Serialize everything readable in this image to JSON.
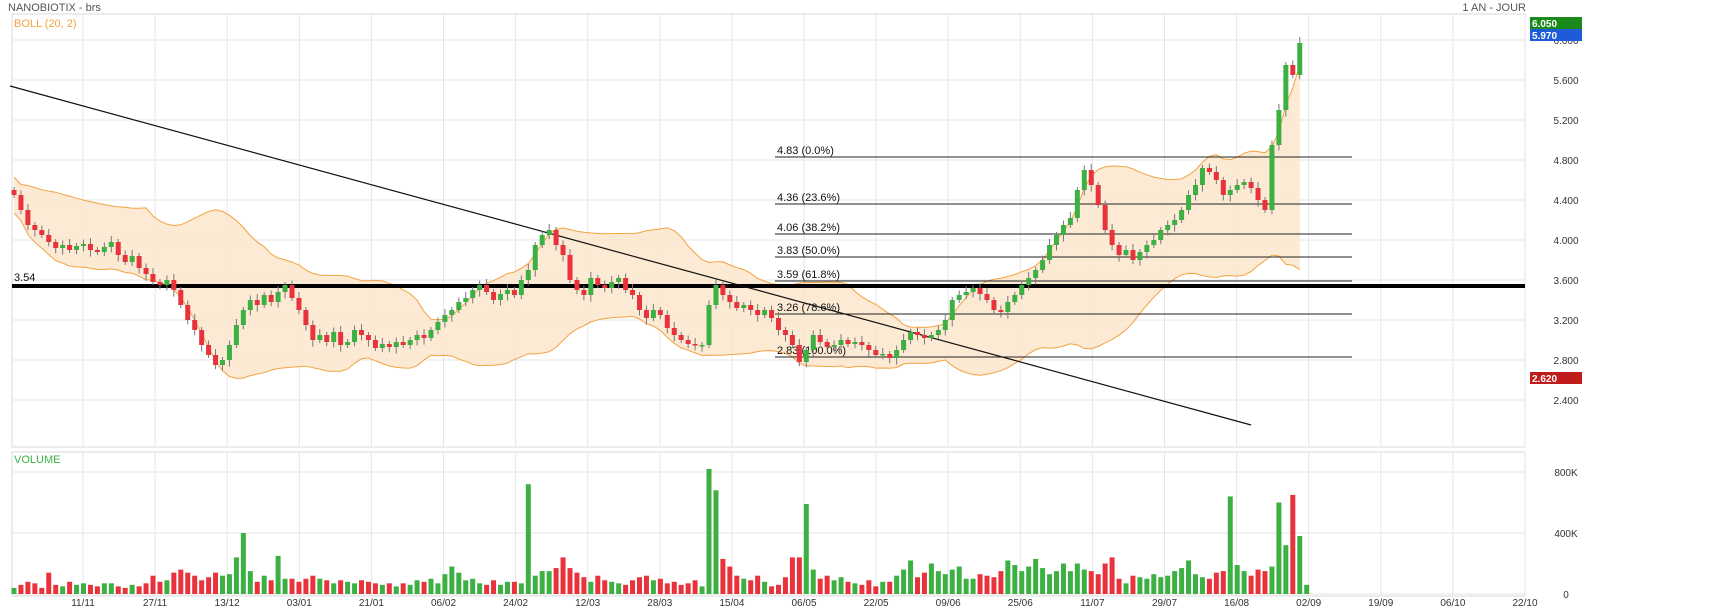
{
  "header": {
    "title": "NANOBIOTIX - brs",
    "period": "1 AN - JOUR"
  },
  "colors": {
    "up": "#3cb043",
    "down": "#e8333c",
    "band_line": "#f2a340",
    "band_fill": "#fce6cc",
    "grid": "#e6e6e6",
    "last_badge": "#1e5bd6",
    "high_badge": "#1a8a1a",
    "low_badge": "#c01c1c"
  },
  "chart_data": [
    {
      "type": "candlestick",
      "title": "NANOBIOTIX - brs",
      "indicator_label": "BOLL (20, 2)",
      "ylim": [
        2.2,
        6.1
      ],
      "y_ticks": [
        "2.400",
        "2.800",
        "3.200",
        "3.600",
        "4.000",
        "4.400",
        "4.800",
        "5.200",
        "5.600",
        "6.000"
      ],
      "x_ticks": [
        "11/11",
        "27/11",
        "13/12",
        "03/01",
        "21/01",
        "06/02",
        "24/02",
        "12/03",
        "28/03",
        "15/04",
        "06/05",
        "22/05",
        "09/06",
        "25/06",
        "11/07",
        "29/07",
        "16/08",
        "02/09",
        "19/09",
        "06/10",
        "22/10"
      ],
      "badges": {
        "high": "6.050",
        "last": "5.970",
        "low": "2.620"
      },
      "support_line": {
        "label": "3.54",
        "value": 3.54
      },
      "fibonacci": [
        {
          "label": "4.83  (0.0%)",
          "value": 4.83
        },
        {
          "label": "4.36  (23.6%)",
          "value": 4.36
        },
        {
          "label": "4.06  (38.2%)",
          "value": 4.06
        },
        {
          "label": "3.83  (50.0%)",
          "value": 3.83
        },
        {
          "label": "3.59  (61.8%)",
          "value": 3.59
        },
        {
          "label": "3.26  (78.6%)",
          "value": 3.26
        },
        {
          "label": "2.83  (100.0%)",
          "value": 2.83
        }
      ],
      "trendline": {
        "from": [
          0,
          5.54
        ],
        "to": [
          178,
          2.15
        ]
      },
      "closes": [
        4.45,
        4.3,
        4.15,
        4.1,
        4.05,
        3.98,
        3.92,
        3.95,
        3.9,
        3.94,
        3.96,
        3.9,
        3.88,
        3.93,
        3.98,
        3.85,
        3.78,
        3.84,
        3.72,
        3.66,
        3.58,
        3.55,
        3.6,
        3.5,
        3.35,
        3.2,
        3.1,
        2.95,
        2.85,
        2.75,
        2.8,
        2.95,
        3.15,
        3.3,
        3.4,
        3.35,
        3.45,
        3.38,
        3.48,
        3.55,
        3.42,
        3.3,
        3.15,
        3.0,
        3.05,
        2.98,
        3.08,
        2.95,
        2.98,
        3.1,
        3.05,
        3.0,
        2.92,
        2.96,
        2.93,
        2.98,
        2.95,
        3.0,
        3.05,
        3.02,
        3.1,
        3.18,
        3.25,
        3.3,
        3.38,
        3.42,
        3.5,
        3.55,
        3.48,
        3.4,
        3.46,
        3.5,
        3.45,
        3.6,
        3.7,
        3.95,
        4.05,
        4.1,
        3.95,
        3.85,
        3.6,
        3.5,
        3.45,
        3.62,
        3.55,
        3.52,
        3.58,
        3.62,
        3.5,
        3.45,
        3.3,
        3.22,
        3.3,
        3.25,
        3.12,
        3.05,
        3.0,
        2.96,
        2.95,
        2.95,
        3.35,
        3.55,
        3.45,
        3.38,
        3.32,
        3.35,
        3.3,
        3.25,
        3.3,
        3.22,
        3.1,
        3.05,
        2.95,
        2.78,
        2.9,
        3.05,
        2.98,
        2.93,
        2.95,
        3.0,
        2.96,
        2.98,
        2.95,
        2.9,
        2.85,
        2.86,
        2.82,
        2.9,
        3.0,
        3.08,
        3.05,
        3.02,
        3.05,
        3.1,
        3.2,
        3.4,
        3.45,
        3.48,
        3.52,
        3.46,
        3.4,
        3.3,
        3.28,
        3.38,
        3.45,
        3.55,
        3.62,
        3.7,
        3.8,
        3.95,
        4.05,
        4.15,
        4.22,
        4.5,
        4.7,
        4.55,
        4.35,
        4.1,
        3.95,
        3.85,
        3.9,
        3.8,
        3.88,
        3.95,
        4.0,
        4.1,
        4.15,
        4.2,
        4.3,
        4.45,
        4.55,
        4.72,
        4.68,
        4.6,
        4.45,
        4.5,
        4.55,
        4.58,
        4.52,
        4.4,
        4.3,
        4.95,
        5.3,
        5.75,
        5.65,
        5.97
      ],
      "volume": {
        "label": "VOLUME",
        "ylim": [
          0,
          860000
        ],
        "y_ticks": [
          "0",
          "400K",
          "800K"
        ],
        "values": [
          40000,
          60000,
          80000,
          70000,
          40000,
          140000,
          60000,
          50000,
          80000,
          60000,
          70000,
          60000,
          50000,
          70000,
          70000,
          50000,
          40000,
          60000,
          50000,
          70000,
          120000,
          80000,
          90000,
          140000,
          160000,
          140000,
          120000,
          90000,
          110000,
          140000,
          120000,
          130000,
          240000,
          400000,
          150000,
          80000,
          120000,
          90000,
          250000,
          100000,
          100000,
          80000,
          100000,
          120000,
          100000,
          90000,
          70000,
          90000,
          80000,
          70000,
          90000,
          80000,
          70000,
          60000,
          70000,
          50000,
          70000,
          60000,
          90000,
          80000,
          100000,
          70000,
          130000,
          180000,
          140000,
          90000,
          100000,
          70000,
          60000,
          90000,
          60000,
          80000,
          80000,
          70000,
          720000,
          120000,
          150000,
          150000,
          170000,
          240000,
          170000,
          140000,
          110000,
          80000,
          120000,
          90000,
          80000,
          70000,
          60000,
          90000,
          110000,
          120000,
          90000,
          100000,
          70000,
          80000,
          60000,
          70000,
          90000,
          50000,
          820000,
          680000,
          230000,
          180000,
          120000,
          100000,
          90000,
          120000,
          80000,
          50000,
          60000,
          110000,
          240000,
          240000,
          590000,
          160000,
          100000,
          120000,
          90000,
          110000,
          80000,
          70000,
          60000,
          90000,
          50000,
          80000,
          80000,
          120000,
          160000,
          220000,
          110000,
          140000,
          200000,
          150000,
          130000,
          160000,
          180000,
          100000,
          100000,
          130000,
          120000,
          110000,
          150000,
          220000,
          190000,
          150000,
          180000,
          230000,
          170000,
          130000,
          150000,
          200000,
          150000,
          200000,
          160000,
          150000,
          130000,
          200000,
          240000,
          100000,
          70000,
          120000,
          110000,
          100000,
          130000,
          110000,
          120000,
          150000,
          170000,
          220000,
          130000,
          110000,
          100000,
          140000,
          150000,
          640000,
          190000,
          150000,
          120000,
          160000,
          150000,
          180000,
          600000,
          320000,
          650000,
          380000,
          60000
        ]
      }
    }
  ]
}
